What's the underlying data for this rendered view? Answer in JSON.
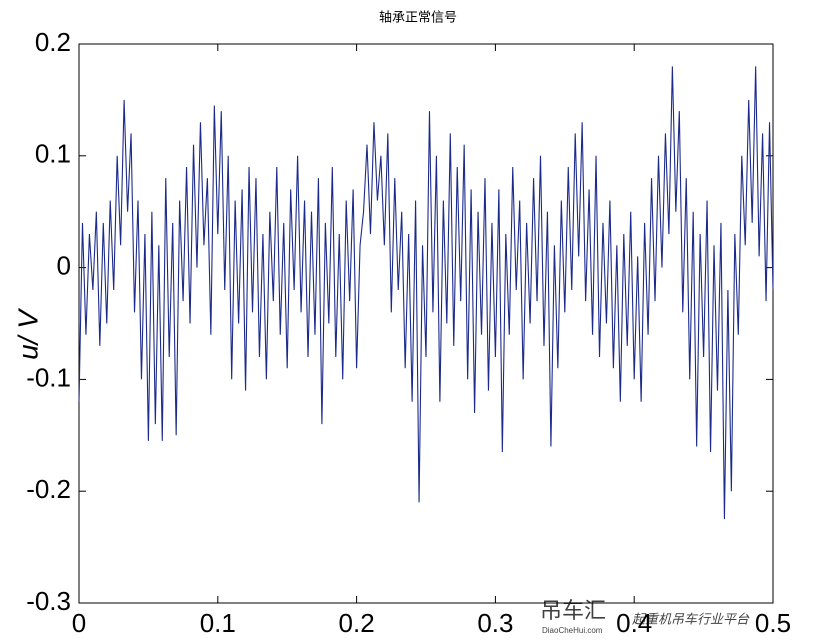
{
  "chart_data": {
    "type": "line",
    "title": "轴承正常信号",
    "ylabel": "u/ V",
    "annotations": [
      "吊车汇",
      "DiaoCheHui.com",
      "起重机吊车行业平台"
    ],
    "xlim": [
      0,
      0.5
    ],
    "xticks": [
      0,
      0.1,
      0.2,
      0.3,
      0.4,
      0.5
    ],
    "ylim": [
      -0.3,
      0.2
    ],
    "yticks": [
      -0.3,
      -0.2,
      -0.1,
      0,
      0.1,
      0.2
    ],
    "grid": false,
    "x": [
      0,
      0.0025,
      0.005,
      0.0075,
      0.01,
      0.0125,
      0.015,
      0.0175,
      0.02,
      0.0225,
      0.025,
      0.0275,
      0.03,
      0.0325,
      0.035,
      0.0375,
      0.04,
      0.0425,
      0.045,
      0.0475,
      0.05,
      0.0525,
      0.055,
      0.0575,
      0.06,
      0.0625,
      0.065,
      0.0675,
      0.07,
      0.0725,
      0.075,
      0.0775,
      0.08,
      0.0825,
      0.085,
      0.0875,
      0.09,
      0.0925,
      0.095,
      0.0975,
      0.1,
      0.1025,
      0.105,
      0.1075,
      0.11,
      0.1125,
      0.115,
      0.1175,
      0.12,
      0.1225,
      0.125,
      0.1275,
      0.13,
      0.1325,
      0.135,
      0.1375,
      0.14,
      0.1425,
      0.145,
      0.1475,
      0.15,
      0.1525,
      0.155,
      0.1575,
      0.16,
      0.1625,
      0.165,
      0.1675,
      0.17,
      0.1725,
      0.175,
      0.1775,
      0.18,
      0.1825,
      0.185,
      0.1875,
      0.19,
      0.1925,
      0.195,
      0.1975,
      0.2,
      0.2025,
      0.205,
      0.2075,
      0.21,
      0.2125,
      0.215,
      0.2175,
      0.22,
      0.2225,
      0.225,
      0.2275,
      0.23,
      0.2325,
      0.235,
      0.2375,
      0.24,
      0.2425,
      0.245,
      0.2475,
      0.25,
      0.2525,
      0.255,
      0.2575,
      0.26,
      0.2625,
      0.265,
      0.2675,
      0.27,
      0.2725,
      0.275,
      0.2775,
      0.28,
      0.2825,
      0.285,
      0.2875,
      0.29,
      0.2925,
      0.295,
      0.2975,
      0.3,
      0.3025,
      0.305,
      0.3075,
      0.31,
      0.3125,
      0.315,
      0.3175,
      0.32,
      0.3225,
      0.325,
      0.3275,
      0.33,
      0.3325,
      0.335,
      0.3375,
      0.34,
      0.3425,
      0.345,
      0.3475,
      0.35,
      0.3525,
      0.355,
      0.3575,
      0.36,
      0.3625,
      0.365,
      0.3675,
      0.37,
      0.3725,
      0.375,
      0.3775,
      0.38,
      0.3825,
      0.385,
      0.3875,
      0.39,
      0.3925,
      0.395,
      0.3975,
      0.4,
      0.4025,
      0.405,
      0.4075,
      0.41,
      0.4125,
      0.415,
      0.4175,
      0.42,
      0.4225,
      0.425,
      0.4275,
      0.43,
      0.4325,
      0.435,
      0.4375,
      0.44,
      0.4425,
      0.445,
      0.4475,
      0.45,
      0.4525,
      0.455,
      0.4575,
      0.46,
      0.4625,
      0.465,
      0.4675,
      0.47,
      0.4725,
      0.475,
      0.4775,
      0.48,
      0.4825,
      0.485,
      0.4875,
      0.49,
      0.4925,
      0.495,
      0.4975,
      0.5
    ],
    "series": [
      {
        "color": "#1c2a8a",
        "values": [
          -0.12,
          0.04,
          -0.06,
          0.03,
          -0.02,
          0.05,
          -0.07,
          0.04,
          -0.05,
          0.06,
          -0.02,
          0.1,
          0.02,
          0.15,
          0.05,
          0.12,
          -0.04,
          0.06,
          -0.1,
          0.03,
          -0.155,
          0.05,
          -0.14,
          0.02,
          -0.155,
          0.08,
          -0.08,
          0.04,
          -0.15,
          0.06,
          -0.03,
          0.09,
          -0.05,
          0.11,
          0.0,
          0.13,
          0.02,
          0.08,
          -0.06,
          0.145,
          0.03,
          0.14,
          -0.02,
          0.1,
          -0.1,
          0.06,
          -0.05,
          0.07,
          -0.11,
          0.09,
          -0.04,
          0.08,
          -0.08,
          0.03,
          -0.1,
          0.05,
          -0.03,
          0.09,
          -0.06,
          0.04,
          -0.09,
          0.07,
          -0.02,
          0.1,
          -0.04,
          0.06,
          -0.08,
          0.05,
          -0.06,
          0.08,
          -0.14,
          0.04,
          -0.05,
          0.09,
          -0.08,
          0.03,
          -0.1,
          0.06,
          -0.03,
          0.07,
          -0.09,
          0.02,
          0.05,
          0.11,
          0.03,
          0.13,
          0.06,
          0.1,
          0.02,
          0.12,
          -0.04,
          0.08,
          -0.02,
          0.05,
          -0.09,
          0.03,
          -0.12,
          0.06,
          -0.21,
          0.02,
          -0.08,
          0.14,
          -0.04,
          0.1,
          -0.12,
          0.06,
          -0.05,
          0.12,
          -0.07,
          0.09,
          -0.03,
          0.11,
          -0.1,
          0.07,
          -0.13,
          0.05,
          -0.06,
          0.08,
          -0.11,
          0.04,
          -0.08,
          0.07,
          -0.165,
          0.03,
          -0.06,
          0.09,
          -0.02,
          0.06,
          -0.1,
          0.04,
          -0.05,
          0.08,
          -0.03,
          0.1,
          -0.07,
          0.05,
          -0.16,
          0.02,
          -0.09,
          0.06,
          -0.04,
          0.09,
          -0.02,
          0.12,
          0.01,
          0.13,
          -0.03,
          0.07,
          -0.06,
          0.1,
          -0.08,
          0.04,
          -0.05,
          0.06,
          -0.09,
          0.02,
          -0.12,
          0.03,
          -0.07,
          0.05,
          -0.1,
          0.01,
          -0.12,
          0.04,
          -0.06,
          0.08,
          -0.03,
          0.1,
          0.0,
          0.12,
          0.03,
          0.18,
          0.05,
          0.14,
          -0.04,
          0.08,
          -0.1,
          0.05,
          -0.16,
          0.03,
          -0.08,
          0.06,
          -0.165,
          0.02,
          -0.11,
          0.04,
          -0.225,
          -0.02,
          -0.2,
          0.03,
          -0.06,
          0.1,
          0.02,
          0.15,
          0.04,
          0.18,
          0.01,
          0.12,
          -0.03,
          0.13,
          -0.02
        ]
      }
    ]
  }
}
